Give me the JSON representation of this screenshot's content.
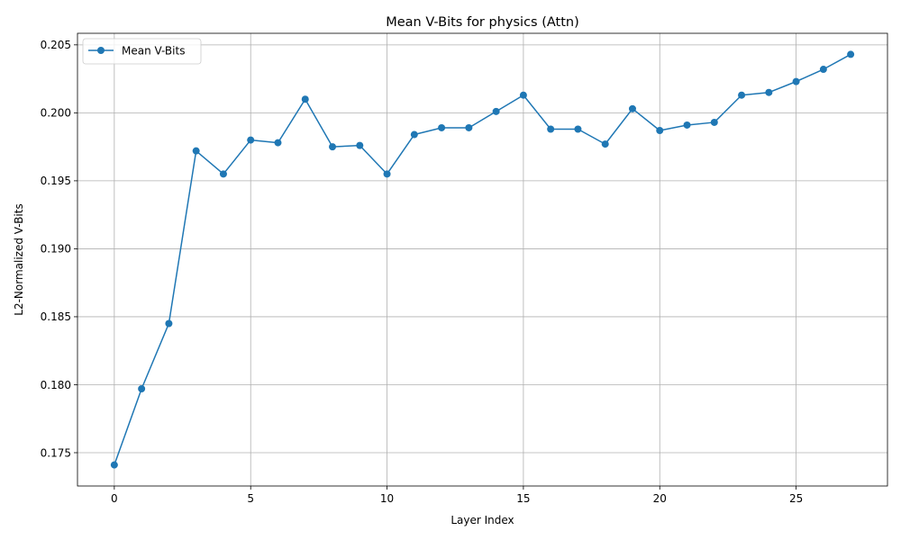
{
  "chart_data": {
    "type": "line",
    "title": "Mean V-Bits for physics (Attn)",
    "xlabel": "Layer Index",
    "ylabel": "L2-Normalized V-Bits",
    "xlim": [
      -1.35,
      28.35
    ],
    "ylim": [
      0.17255,
      0.20585
    ],
    "xticks": [
      0,
      5,
      10,
      15,
      20,
      25
    ],
    "yticks": [
      0.175,
      0.18,
      0.185,
      0.19,
      0.195,
      0.2,
      0.205
    ],
    "grid": true,
    "legend_position": "upper-left",
    "series": [
      {
        "name": "Mean V-Bits",
        "color": "#1f77b4",
        "marker": "circle",
        "x": [
          0,
          1,
          2,
          3,
          4,
          5,
          6,
          7,
          8,
          9,
          10,
          11,
          12,
          13,
          14,
          15,
          16,
          17,
          18,
          19,
          20,
          21,
          22,
          23,
          24,
          25,
          26,
          27
        ],
        "y": [
          0.1741,
          0.1797,
          0.1845,
          0.1972,
          0.1955,
          0.198,
          0.1978,
          0.201,
          0.1975,
          0.1976,
          0.1955,
          0.1984,
          0.1989,
          0.1989,
          0.2001,
          0.2013,
          0.1988,
          0.1988,
          0.1977,
          0.2003,
          0.1987,
          0.1991,
          0.1993,
          0.2013,
          0.2015,
          0.2023,
          0.2032,
          0.2043
        ]
      }
    ]
  }
}
